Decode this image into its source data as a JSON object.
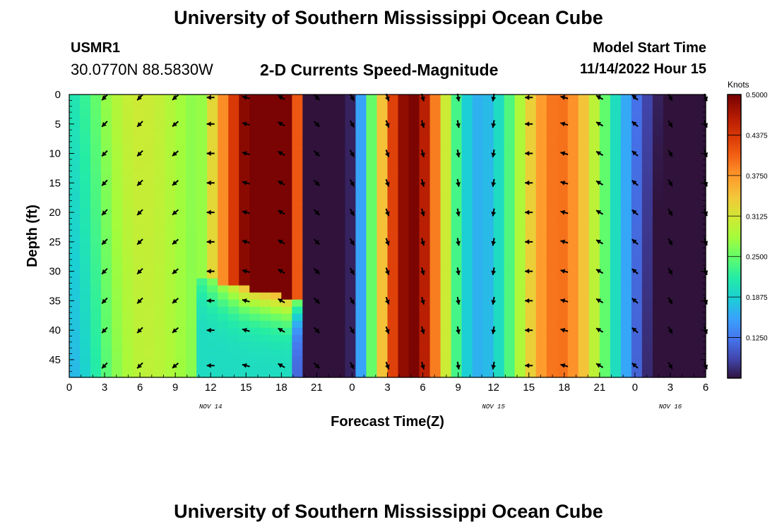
{
  "header": {
    "title": "University of Southern Mississippi Ocean Cube",
    "station": "USMR1",
    "coords": "30.0770N  88.5830W",
    "subtitle": "2-D Currents Speed-Magnitude",
    "model_start_label": "Model Start Time",
    "model_start_value": "11/14/2022 Hour 15",
    "footer_title": "University of Southern Mississippi Ocean Cube"
  },
  "chart_data": {
    "type": "heatmap",
    "title": "2-D Currents Speed-Magnitude",
    "xlabel": "Forecast Time(Z)",
    "ylabel": "Depth (ft)",
    "x_tick_labels": [
      "0",
      "3",
      "6",
      "9",
      "12",
      "15",
      "18",
      "21",
      "0",
      "3",
      "6",
      "9",
      "12",
      "15",
      "18",
      "21",
      "0",
      "3",
      "6"
    ],
    "x_range_hours": [
      0,
      54
    ],
    "date_labels": [
      {
        "text": "NOV 14",
        "hour": 12
      },
      {
        "text": "NOV 15",
        "hour": 36
      },
      {
        "text": "NOV 16",
        "hour": 51
      }
    ],
    "y_tick_labels": [
      "0",
      "5",
      "10",
      "15",
      "20",
      "25",
      "30",
      "35",
      "40",
      "45"
    ],
    "y_range_ft": [
      0,
      48
    ],
    "colorbar": {
      "unit": "Knots",
      "tick_labels": [
        "0.5000",
        "0.4375",
        "0.3750",
        "0.3125",
        "0.2500",
        "0.1875",
        "0.1250"
      ],
      "range": [
        0.0625,
        0.5
      ]
    },
    "colormap": [
      "#30123b",
      "#4145ab",
      "#4675ed",
      "#39a2fc",
      "#1bcfd4",
      "#24eca6",
      "#61fc6c",
      "#a4fc3b",
      "#d1e834",
      "#f3c63a",
      "#fe9b2d",
      "#f36315",
      "#d93806",
      "#b11901",
      "#7a0403"
    ],
    "vector_hours": [
      3,
      6,
      9,
      12,
      15,
      18,
      21,
      24,
      27,
      30,
      33,
      36,
      39,
      42,
      45,
      48,
      51,
      54
    ],
    "vector_depths_ft": [
      0.5,
      5,
      10,
      15,
      20,
      25,
      30,
      35,
      40,
      46
    ],
    "vector_direction_deg_by_hour": [
      225,
      225,
      230,
      270,
      285,
      300,
      135,
      150,
      160,
      165,
      170,
      190,
      270,
      285,
      300,
      310,
      150,
      160
    ]
  }
}
